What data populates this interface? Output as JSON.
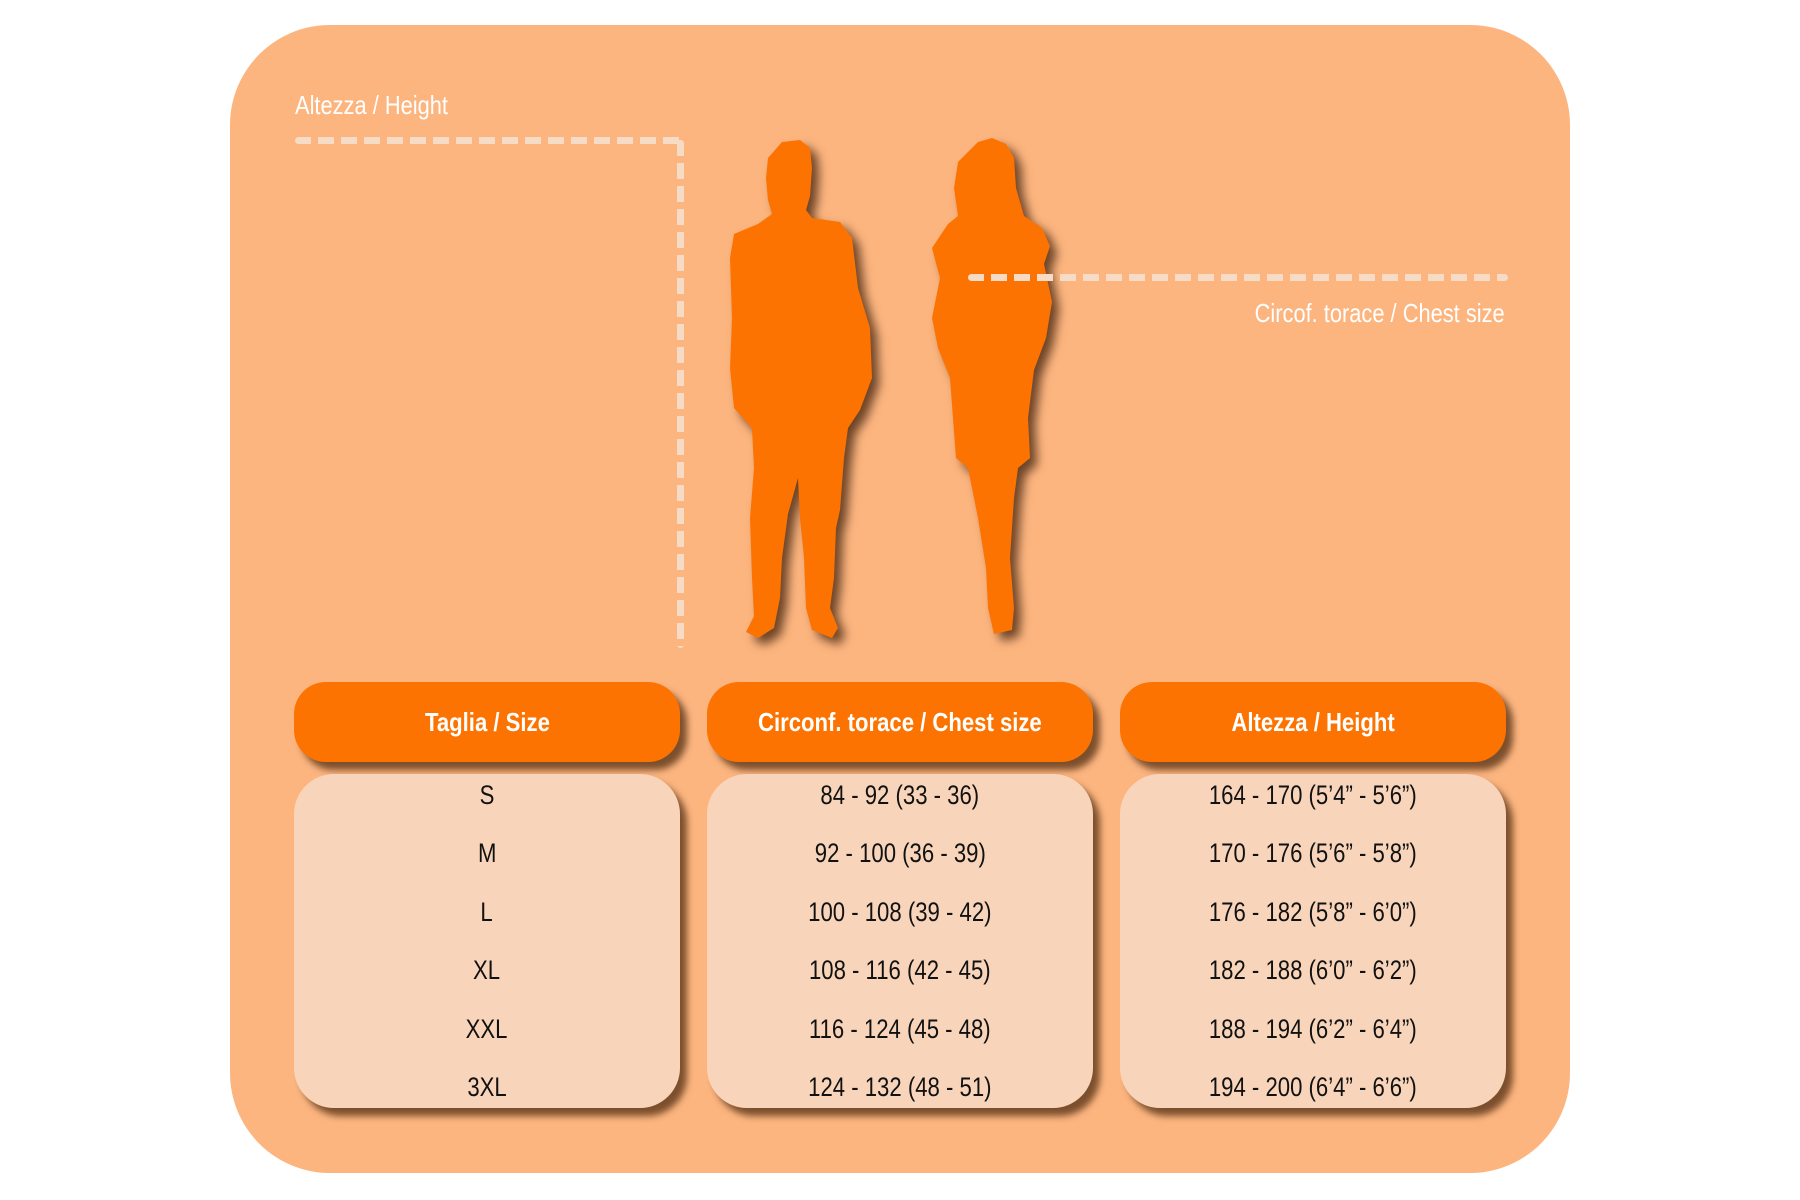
{
  "colors": {
    "background": "#fcb57f",
    "accent": "#fc7302",
    "table_body": "#f8d5ba",
    "label_text": "#ffffff"
  },
  "illustration": {
    "height_label": "Altezza / Height",
    "chest_label": "Circof. torace / Chest size",
    "figures": [
      "man-silhouette",
      "woman-silhouette"
    ]
  },
  "table": {
    "columns": [
      {
        "header": "Taglia / Size",
        "values": [
          "S",
          "M",
          "L",
          "XL",
          "XXL",
          "3XL"
        ]
      },
      {
        "header": "Circonf. torace / Chest size",
        "values": [
          "84 - 92 (33 - 36)",
          "92 - 100 (36 - 39)",
          "100 - 108 (39 - 42)",
          "108 - 116 (42 - 45)",
          "116 - 124 (45 - 48)",
          "124 - 132 (48 - 51)"
        ]
      },
      {
        "header": "Altezza / Height",
        "values": [
          "164 - 170 (5’4” - 5’6”)",
          "170 - 176 (5’6” - 5’8”)",
          "176 - 182 (5’8” - 6’0”)",
          "182 - 188 (6’0” - 6’2”)",
          "188 - 194 (6’2” - 6’4”)",
          "194 - 200 (6’4” - 6’6”)"
        ]
      }
    ]
  }
}
